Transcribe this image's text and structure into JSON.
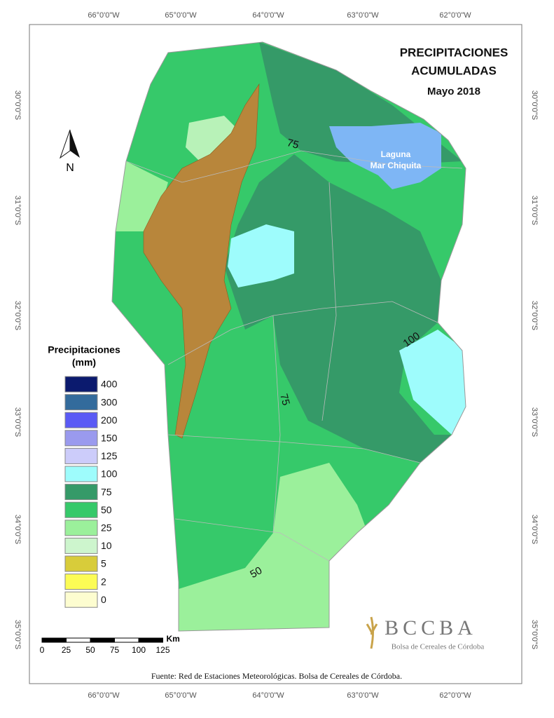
{
  "title": {
    "line1": "PRECIPITACIONES",
    "line2": "ACUMULADAS",
    "subtitle": "Mayo 2018"
  },
  "longitude_labels": [
    "66°0'0\"W",
    "65°0'0\"W",
    "64°0'0\"W",
    "63°0'0\"W",
    "62°0'0\"W"
  ],
  "latitude_labels": [
    "30°0'0\"S",
    "31°0'0\"S",
    "32°0'0\"S",
    "33°0'0\"S",
    "34°0'0\"S",
    "35°0'0\"S"
  ],
  "lake_label": {
    "line1": "Laguna",
    "line2": "Mar Chiquita"
  },
  "north_arrow": "N",
  "legend": {
    "title_line1": "Precipitaciones",
    "title_line2": "(mm)",
    "items": [
      {
        "label": "400",
        "color": "#0b1a6e"
      },
      {
        "label": "300",
        "color": "#336b9c"
      },
      {
        "label": "200",
        "color": "#5a5af5"
      },
      {
        "label": "150",
        "color": "#9a9aee"
      },
      {
        "label": "125",
        "color": "#ccccfa"
      },
      {
        "label": "100",
        "color": "#9efcfc"
      },
      {
        "label": "75",
        "color": "#359a68"
      },
      {
        "label": "50",
        "color": "#36c96a"
      },
      {
        "label": "25",
        "color": "#9bf09b"
      },
      {
        "label": "10",
        "color": "#cdf5cd"
      },
      {
        "label": "5",
        "color": "#d8cc3a"
      },
      {
        "label": "2",
        "color": "#fcfc55"
      },
      {
        "label": "0",
        "color": "#fdfdd0"
      }
    ]
  },
  "scale_bar": {
    "unit": "Km",
    "labels": [
      "0",
      "25",
      "50",
      "75",
      "100",
      "125"
    ]
  },
  "contour_labels": [
    "75",
    "100",
    "75",
    "50"
  ],
  "logo": {
    "name": "BCCBA",
    "subtitle": "Bolsa de Cereales de Córdoba"
  },
  "source": "Fuente: Red de Estaciones Meteorológicas. Bolsa de Cereales de Córdoba."
}
